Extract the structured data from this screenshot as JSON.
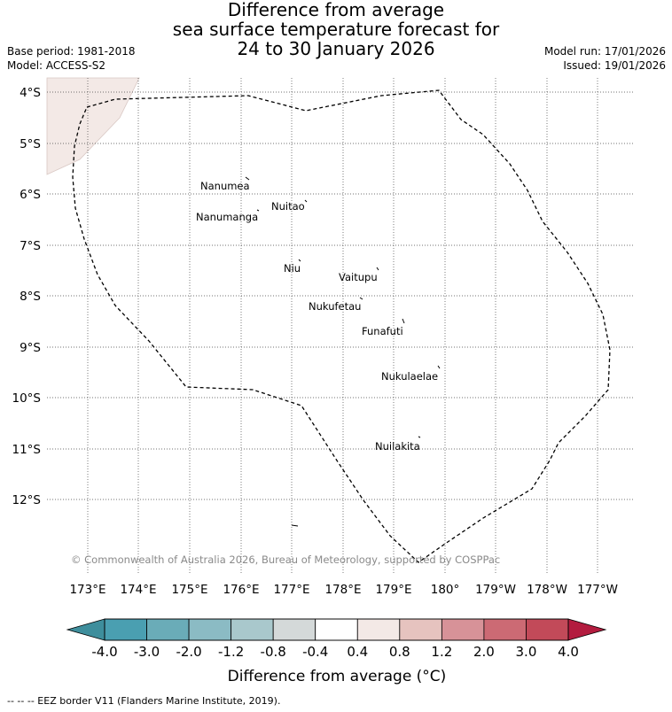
{
  "title": {
    "line1": "Difference from average",
    "line2": "sea surface temperature forecast for",
    "line3": "24 to 30 January 2026"
  },
  "meta": {
    "base_period": "Base period: 1981-2018",
    "model": "Model: ACCESS-S2",
    "model_run": "Model run: 17/01/2026",
    "issued": "Issued: 19/01/2026"
  },
  "map": {
    "lat_labels": [
      "4°S",
      "5°S",
      "6°S",
      "7°S",
      "8°S",
      "9°S",
      "10°S",
      "11°S",
      "12°S"
    ],
    "lon_labels": [
      "173°E",
      "174°E",
      "175°E",
      "176°E",
      "177°E",
      "178°E",
      "179°E",
      "180°",
      "179°W",
      "178°W",
      "177°W"
    ],
    "islands": [
      {
        "name": "Nanumea"
      },
      {
        "name": "Nuitao"
      },
      {
        "name": "Nanumanga"
      },
      {
        "name": "Niu"
      },
      {
        "name": "Vaitupu"
      },
      {
        "name": "Nukufetau"
      },
      {
        "name": "Funafuti"
      },
      {
        "name": "Nukulaelae"
      },
      {
        "name": "Nuilakita"
      }
    ],
    "copyright": "© Commonwealth of Australia 2026, Bureau of Meteorology, supported by COSPPac"
  },
  "colorbar": {
    "ticks": [
      "-4.0",
      "-3.0",
      "-2.0",
      "-1.2",
      "-0.8",
      "-0.4",
      "0.4",
      "0.8",
      "1.2",
      "2.0",
      "3.0",
      "4.0"
    ],
    "colors": [
      "#3e8e9c",
      "#4a9fb1",
      "#6aacb8",
      "#8bbbc4",
      "#a9c8cc",
      "#d4d9d9",
      "#ffffff",
      "#f3e9e6",
      "#e6c3bf",
      "#d79298",
      "#cc6a74",
      "#c24a59",
      "#b31c3f"
    ],
    "label": "Difference from average (°C)"
  },
  "footer": "--  --  -- EEZ border V11 (Flanders Marine Institute, 2019)."
}
